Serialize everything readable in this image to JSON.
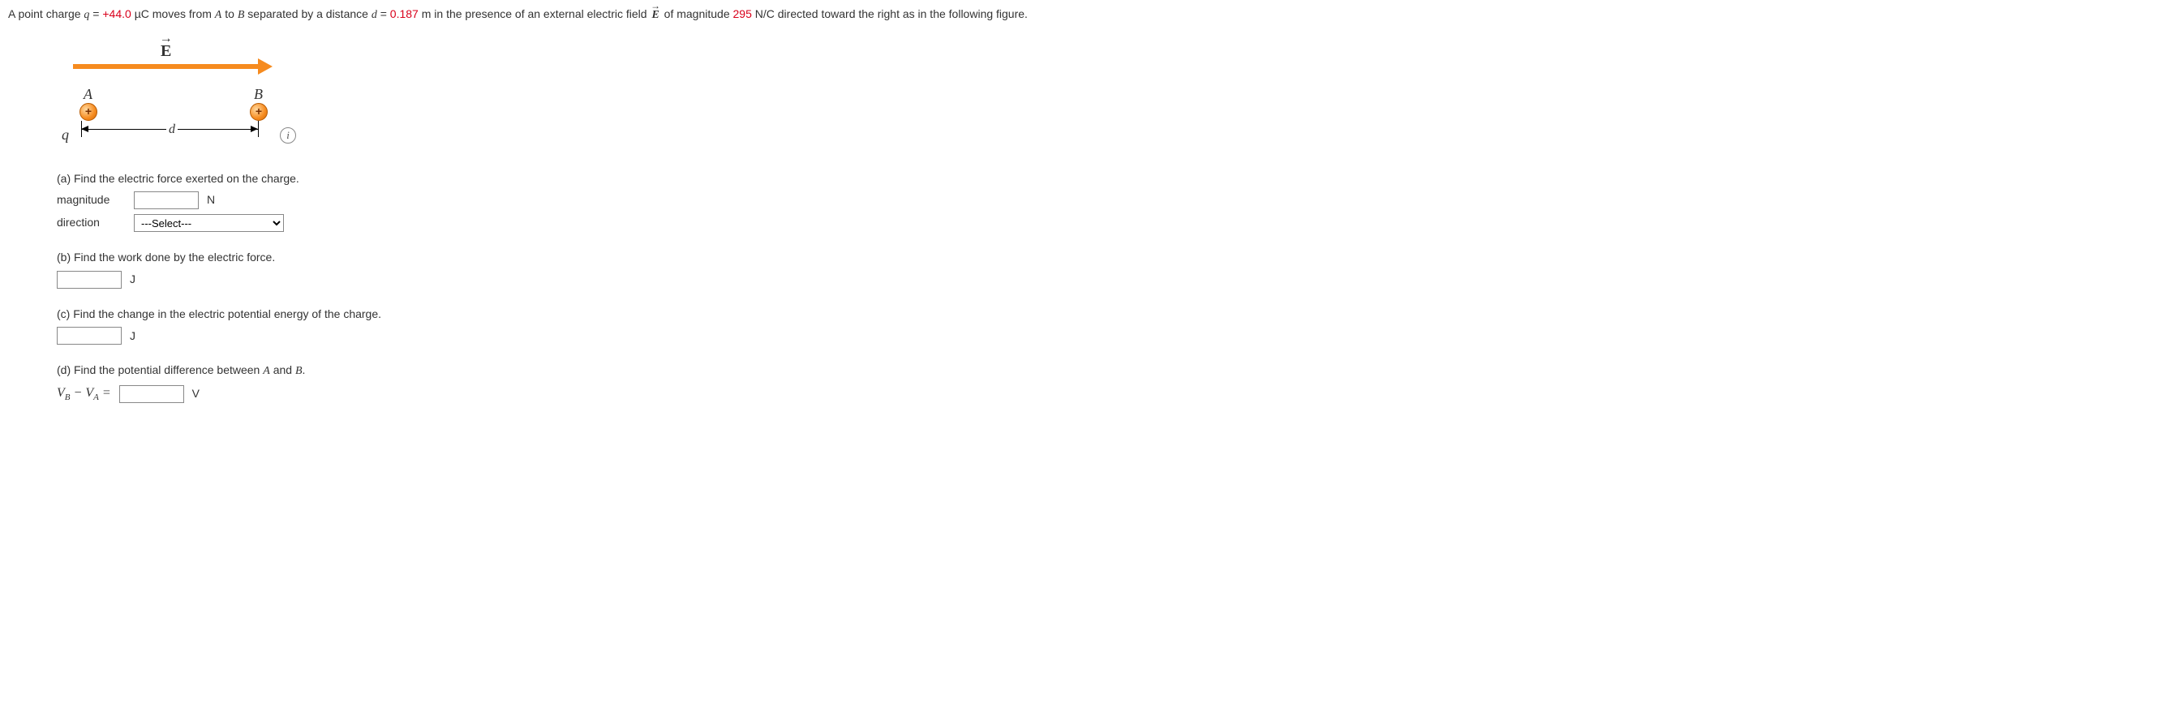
{
  "problem": {
    "pre1": "A point charge ",
    "q_eq": "q",
    "pre2": " = ",
    "q_val": "+44.0",
    "q_unit": " µC moves from ",
    "A": "A",
    "pre3": " to ",
    "B": "B",
    "pre4": " separated by a distance ",
    "d": "d",
    "pre5": " = ",
    "d_val": "0.187",
    "pre6": " m in the presence of an external electric field ",
    "E": "E",
    "pre7": " of magnitude ",
    "E_val": "295",
    "pre8": " N/C directed toward the right as in the following figure."
  },
  "figure": {
    "E_label": "E",
    "A": "A",
    "B": "B",
    "plus": "+",
    "q": "q",
    "d": "d",
    "info": "i",
    "colors": {
      "arrow": "#f68b1f",
      "charge_grad_light": "#ffd9a0",
      "charge_border": "#b85a00"
    }
  },
  "parts": {
    "a": {
      "text": "(a) Find the electric force exerted on the charge.",
      "mag_label": "magnitude",
      "mag_unit": "N",
      "dir_label": "direction",
      "dir_placeholder": "---Select---"
    },
    "b": {
      "text": "(b) Find the work done by the electric force.",
      "unit": "J"
    },
    "c": {
      "text": "(c) Find the change in the electric potential energy of the charge.",
      "unit": "J"
    },
    "d": {
      "text_pre": "(d) Find the potential difference between ",
      "A": "A",
      "mid": " and ",
      "B": "B",
      "text_post": ".",
      "lhs_VB": "V",
      "lhs_B": "B",
      "minus": " − ",
      "lhs_VA": "V",
      "lhs_A": "A",
      "eq": " = ",
      "unit": "V"
    }
  }
}
